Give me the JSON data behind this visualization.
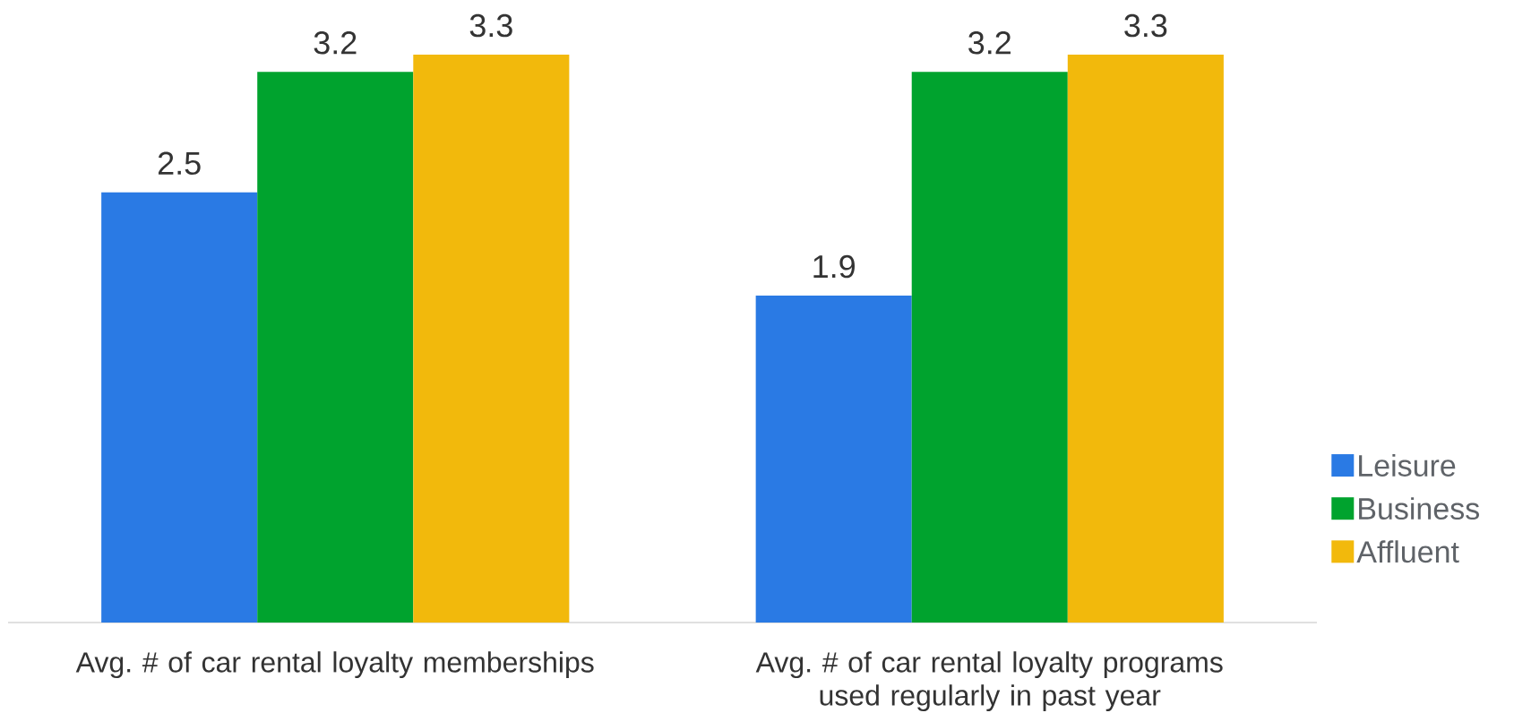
{
  "chart_data": {
    "type": "bar",
    "categories": [
      "Avg. # of car rental loyalty memberships",
      "Avg. # of car rental loyalty programs used regularly in past year"
    ],
    "series": [
      {
        "name": "Leisure",
        "color": "#2a7ae4",
        "values": [
          2.5,
          1.9
        ]
      },
      {
        "name": "Business",
        "color": "#00a32e",
        "values": [
          3.2,
          3.2
        ]
      },
      {
        "name": "Affluent",
        "color": "#f2b90c",
        "values": [
          3.3,
          3.3
        ]
      }
    ],
    "data_labels": true,
    "legend": "right"
  }
}
